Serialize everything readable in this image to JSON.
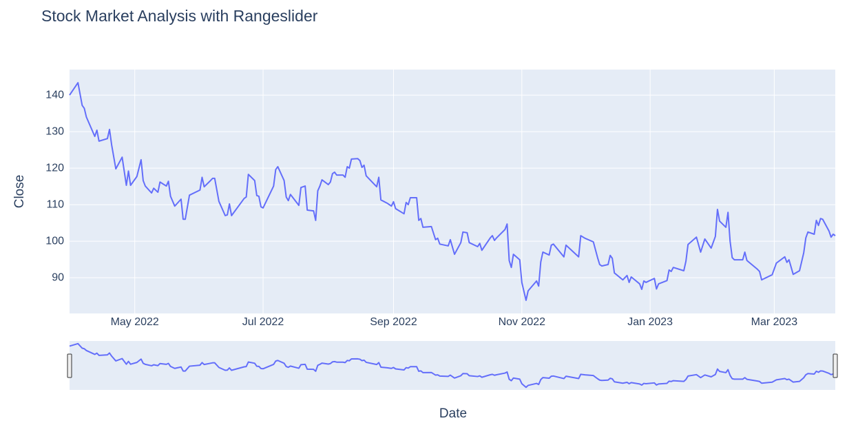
{
  "chart_data": {
    "type": "line",
    "title": "Stock Market Analysis with Rangeslider",
    "x_label": "Date",
    "y_label": "Close",
    "x": [
      "2022-03-31",
      "2022-04-04",
      "2022-04-06",
      "2022-04-07",
      "2022-04-08",
      "2022-04-12",
      "2022-04-13",
      "2022-04-14",
      "2022-04-18",
      "2022-04-19",
      "2022-04-20",
      "2022-04-22",
      "2022-04-25",
      "2022-04-27",
      "2022-04-28",
      "2022-04-29",
      "2022-05-02",
      "2022-05-04",
      "2022-05-05",
      "2022-05-06",
      "2022-05-09",
      "2022-05-10",
      "2022-05-12",
      "2022-05-13",
      "2022-05-16",
      "2022-05-17",
      "2022-05-18",
      "2022-05-20",
      "2022-05-23",
      "2022-05-24",
      "2022-05-25",
      "2022-05-27",
      "2022-06-01",
      "2022-06-02",
      "2022-06-03",
      "2022-06-06",
      "2022-06-07",
      "2022-06-08",
      "2022-06-10",
      "2022-06-13",
      "2022-06-14",
      "2022-06-15",
      "2022-06-16",
      "2022-06-22",
      "2022-06-23",
      "2022-06-24",
      "2022-06-27",
      "2022-06-28",
      "2022-06-29",
      "2022-06-30",
      "2022-07-01",
      "2022-07-06",
      "2022-07-07",
      "2022-07-08",
      "2022-07-11",
      "2022-07-12",
      "2022-07-13",
      "2022-07-14",
      "2022-07-18",
      "2022-07-19",
      "2022-07-21",
      "2022-07-22",
      "2022-07-25",
      "2022-07-26",
      "2022-07-27",
      "2022-07-28",
      "2022-07-29",
      "2022-08-01",
      "2022-08-02",
      "2022-08-03",
      "2022-08-04",
      "2022-08-05",
      "2022-08-08",
      "2022-08-09",
      "2022-08-10",
      "2022-08-11",
      "2022-08-12",
      "2022-08-15",
      "2022-08-16",
      "2022-08-17",
      "2022-08-18",
      "2022-08-19",
      "2022-08-23",
      "2022-08-24",
      "2022-08-25",
      "2022-08-26",
      "2022-08-29",
      "2022-08-31",
      "2022-09-01",
      "2022-09-02",
      "2022-09-06",
      "2022-09-07",
      "2022-09-08",
      "2022-09-09",
      "2022-09-12",
      "2022-09-13",
      "2022-09-14",
      "2022-09-15",
      "2022-09-19",
      "2022-09-21",
      "2022-09-22",
      "2022-09-23",
      "2022-09-27",
      "2022-09-28",
      "2022-09-30",
      "2022-10-03",
      "2022-10-04",
      "2022-10-06",
      "2022-10-07",
      "2022-10-11",
      "2022-10-12",
      "2022-10-13",
      "2022-10-17",
      "2022-10-18",
      "2022-10-19",
      "2022-10-20",
      "2022-10-24",
      "2022-10-25",
      "2022-10-26",
      "2022-10-27",
      "2022-10-28",
      "2022-10-31",
      "2022-11-01",
      "2022-11-03",
      "2022-11-04",
      "2022-11-08",
      "2022-11-09",
      "2022-11-10",
      "2022-11-11",
      "2022-11-14",
      "2022-11-15",
      "2022-11-16",
      "2022-11-21",
      "2022-11-22",
      "2022-11-28",
      "2022-11-29",
      "2022-12-01",
      "2022-12-05",
      "2022-12-07",
      "2022-12-08",
      "2022-12-09",
      "2022-12-12",
      "2022-12-13",
      "2022-12-14",
      "2022-12-15",
      "2022-12-19",
      "2022-12-21",
      "2022-12-22",
      "2022-12-23",
      "2022-12-27",
      "2022-12-28",
      "2022-12-29",
      "2022-12-30",
      "2023-01-03",
      "2023-01-04",
      "2023-01-05",
      "2023-01-09",
      "2023-01-10",
      "2023-01-11",
      "2023-01-12",
      "2023-01-17",
      "2023-01-18",
      "2023-01-19",
      "2023-01-23",
      "2023-01-25",
      "2023-01-27",
      "2023-01-30",
      "2023-02-01",
      "2023-02-02",
      "2023-02-03",
      "2023-02-06",
      "2023-02-07",
      "2023-02-08",
      "2023-02-09",
      "2023-02-10",
      "2023-02-14",
      "2023-02-15",
      "2023-02-16",
      "2023-02-21",
      "2023-02-22",
      "2023-02-23",
      "2023-02-28",
      "2023-03-02",
      "2023-03-06",
      "2023-03-07",
      "2023-03-08",
      "2023-03-10",
      "2023-03-13",
      "2023-03-15",
      "2023-03-16",
      "2023-03-17",
      "2023-03-20",
      "2023-03-21",
      "2023-03-22",
      "2023-03-23",
      "2023-03-24",
      "2023-03-27",
      "2023-03-28",
      "2023-03-29",
      "2023-03-30"
    ],
    "series": [
      {
        "name": "Close",
        "color": "#636efa",
        "values": [
          140,
          143.4,
          137.2,
          136.4,
          134,
          128.7,
          130.4,
          127.4,
          128.1,
          130.6,
          126.4,
          119.8,
          123,
          115.3,
          119.2,
          115.3,
          117.7,
          122.3,
          116.6,
          115.1,
          113.2,
          114.5,
          113.4,
          116.2,
          115.1,
          116.4,
          112.3,
          109.6,
          111.5,
          106,
          106,
          112.6,
          114,
          117.5,
          114.9,
          116.6,
          117.2,
          117.2,
          110.9,
          107,
          107.2,
          110.2,
          107,
          111.7,
          112.1,
          118.3,
          116.6,
          112.5,
          112.3,
          109.4,
          109.1,
          115.1,
          119.6,
          120.4,
          116.6,
          112.1,
          111.1,
          112.8,
          109.8,
          114.7,
          115.1,
          108.5,
          108.3,
          105.7,
          113.8,
          115.1,
          116.8,
          115.5,
          116.2,
          118.5,
          118.9,
          118.1,
          118.1,
          117.5,
          120.4,
          120,
          122.5,
          122.6,
          122.1,
          120.2,
          120.8,
          117.9,
          115.5,
          114.9,
          117.5,
          111.3,
          110.4,
          109.6,
          110.8,
          108.9,
          107.5,
          110.6,
          110,
          111.9,
          111.9,
          105.7,
          106.2,
          103.8,
          104,
          100.4,
          100.8,
          99.2,
          98.7,
          100.4,
          96.4,
          99.6,
          102.5,
          102.3,
          99.6,
          98.5,
          99.4,
          97.5,
          100.9,
          101.5,
          100.2,
          100.9,
          103.2,
          104.7,
          94.7,
          92.8,
          96.4,
          94.9,
          88.7,
          83.8,
          86.4,
          89.1,
          87.7,
          94.3,
          97,
          96.2,
          98.9,
          99.2,
          95.7,
          98.9,
          95.7,
          101.5,
          100.8,
          99.8,
          95.5,
          93.6,
          93.2,
          93.6,
          96.1,
          95.3,
          91.3,
          89.4,
          90.6,
          88.7,
          90.2,
          88.3,
          86.8,
          89.1,
          88.7,
          89.8,
          86.9,
          88.3,
          89.2,
          92.1,
          91.7,
          92.8,
          91.9,
          94.5,
          99.1,
          101.1,
          97,
          100.6,
          98.1,
          101.3,
          108.7,
          105.5,
          103.8,
          107.9,
          100,
          95.5,
          94.9,
          94.9,
          97,
          94.7,
          92.3,
          91.7,
          89.4,
          90.8,
          94,
          95.7,
          94.2,
          94.9,
          90.9,
          91.9,
          96.8,
          100.9,
          102.5,
          101.9,
          105.7,
          104.3,
          106.2,
          106,
          102.8,
          101.1,
          101.9,
          101.5
        ]
      }
    ],
    "xlim": [
      "2022-03-31",
      "2023-03-30"
    ],
    "xticks": [
      {
        "value": "2022-05-01",
        "label": "May 2022"
      },
      {
        "value": "2022-07-01",
        "label": "Jul 2022"
      },
      {
        "value": "2022-09-01",
        "label": "Sep 2022"
      },
      {
        "value": "2022-11-01",
        "label": "Nov 2022"
      },
      {
        "value": "2023-01-01",
        "label": "Jan 2023"
      },
      {
        "value": "2023-03-01",
        "label": "Mar 2023"
      }
    ],
    "ylim": [
      80.2,
      147
    ],
    "yticks": [
      90,
      100,
      110,
      120,
      130,
      140
    ],
    "grid": true,
    "rangeslider": true
  }
}
